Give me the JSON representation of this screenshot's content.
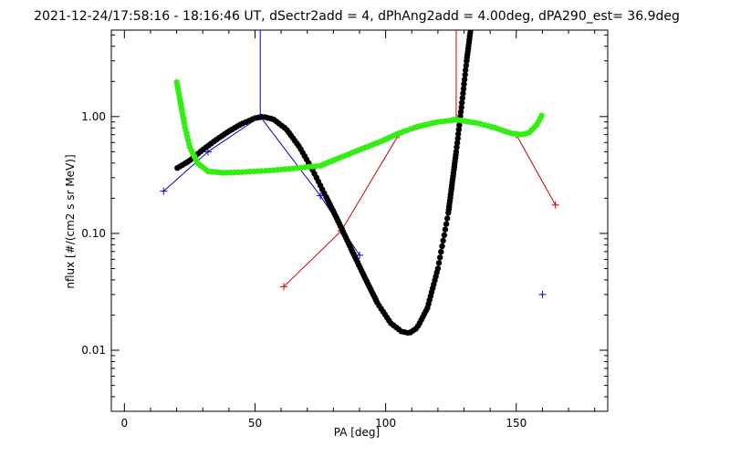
{
  "chart_data": {
    "type": "line",
    "title": "2021-12-24/17:58:16 - 18:16:46 UT, dSectr2add = 4, dPhAng2add = 4.00deg, dPA290_est=  36.9deg",
    "xlabel": "PA [deg]",
    "ylabel": "nflux [#/(cm2 s sr MeV)]",
    "xlim": [
      -5,
      185
    ],
    "ylim": [
      0.003,
      5.5
    ],
    "yscale": "log",
    "grid": false,
    "x_ticks": [
      {
        "value": 0,
        "label": "0"
      },
      {
        "value": 50,
        "label": "50"
      },
      {
        "value": 100,
        "label": "100"
      },
      {
        "value": 150,
        "label": "150"
      }
    ],
    "y_ticks": [
      {
        "value": 0.01,
        "label": "0.01"
      },
      {
        "value": 0.1,
        "label": "0.10"
      },
      {
        "value": 1.0,
        "label": "1.00"
      }
    ],
    "series": [
      {
        "color": "#0000cc",
        "style": "line-with-plus-markers",
        "points": [
          [
            15,
            0.23
          ],
          [
            32,
            0.5
          ],
          [
            52,
            1.0
          ],
          [
            75,
            0.21
          ],
          [
            90,
            0.065
          ],
          [
            160,
            0.03
          ]
        ],
        "connected_up_to_index": 4,
        "spike": {
          "x": 52,
          "y_top": 5.5
        }
      },
      {
        "color": "#cc0000",
        "style": "line-with-plus-markers",
        "points": [
          [
            61,
            0.035
          ],
          [
            83,
            0.105
          ],
          [
            105,
            0.7
          ],
          [
            127,
            0.98
          ],
          [
            150,
            0.7
          ],
          [
            165,
            0.175
          ]
        ],
        "spike": {
          "x": 127,
          "y_top": 5.5
        }
      },
      {
        "color": "#000000",
        "style": "thick-dots",
        "points": [
          [
            20,
            0.36
          ],
          [
            25,
            0.42
          ],
          [
            30,
            0.52
          ],
          [
            35,
            0.63
          ],
          [
            40,
            0.75
          ],
          [
            45,
            0.87
          ],
          [
            50,
            0.97
          ],
          [
            53,
            1.0
          ],
          [
            57,
            0.95
          ],
          [
            62,
            0.78
          ],
          [
            67,
            0.55
          ],
          [
            72,
            0.35
          ],
          [
            77,
            0.21
          ],
          [
            82,
            0.125
          ],
          [
            87,
            0.072
          ],
          [
            92,
            0.042
          ],
          [
            97,
            0.025
          ],
          [
            102,
            0.017
          ],
          [
            106,
            0.0145
          ],
          [
            109,
            0.014
          ],
          [
            112,
            0.0155
          ],
          [
            116,
            0.023
          ],
          [
            120,
            0.05
          ],
          [
            124,
            0.15
          ],
          [
            127,
            0.5
          ],
          [
            129,
            1.2
          ],
          [
            131,
            3.0
          ],
          [
            132.5,
            5.5
          ]
        ]
      },
      {
        "color": "#33ee11",
        "style": "thick-dots",
        "points": [
          [
            20,
            2.0
          ],
          [
            21,
            1.5
          ],
          [
            23,
            0.85
          ],
          [
            25,
            0.55
          ],
          [
            28,
            0.4
          ],
          [
            32,
            0.34
          ],
          [
            38,
            0.33
          ],
          [
            45,
            0.335
          ],
          [
            55,
            0.345
          ],
          [
            65,
            0.36
          ],
          [
            75,
            0.38
          ],
          [
            82,
            0.44
          ],
          [
            90,
            0.52
          ],
          [
            98,
            0.61
          ],
          [
            105,
            0.72
          ],
          [
            112,
            0.82
          ],
          [
            120,
            0.9
          ],
          [
            127,
            0.94
          ],
          [
            135,
            0.88
          ],
          [
            142,
            0.8
          ],
          [
            148,
            0.72
          ],
          [
            152,
            0.7
          ],
          [
            155,
            0.73
          ],
          [
            158,
            0.86
          ],
          [
            160,
            1.05
          ]
        ]
      }
    ]
  }
}
